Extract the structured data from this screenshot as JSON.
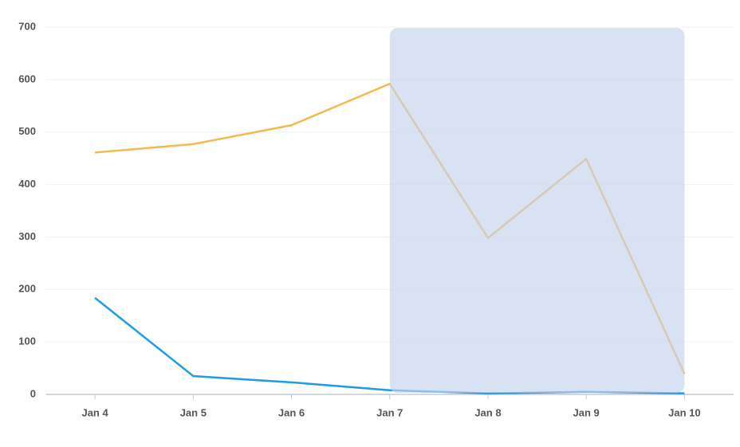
{
  "chart_data": {
    "type": "line",
    "categories": [
      "Jan 4",
      "Jan 5",
      "Jan 6",
      "Jan 7",
      "Jan 8",
      "Jan 9",
      "Jan 10"
    ],
    "series": [
      {
        "color": "#f5b94b",
        "values": [
          461,
          477,
          513,
          592,
          298,
          449,
          39
        ]
      },
      {
        "color": "#1d9be8",
        "values": [
          184,
          35,
          23,
          8,
          2,
          5,
          2
        ]
      }
    ],
    "ylim": [
      0,
      700
    ],
    "yticks": [
      0,
      100,
      200,
      300,
      400,
      500,
      600,
      700
    ],
    "grid": true,
    "selection": {
      "start": "Jan 7",
      "end": "Jan 10",
      "color": "#c4d3ec"
    }
  }
}
